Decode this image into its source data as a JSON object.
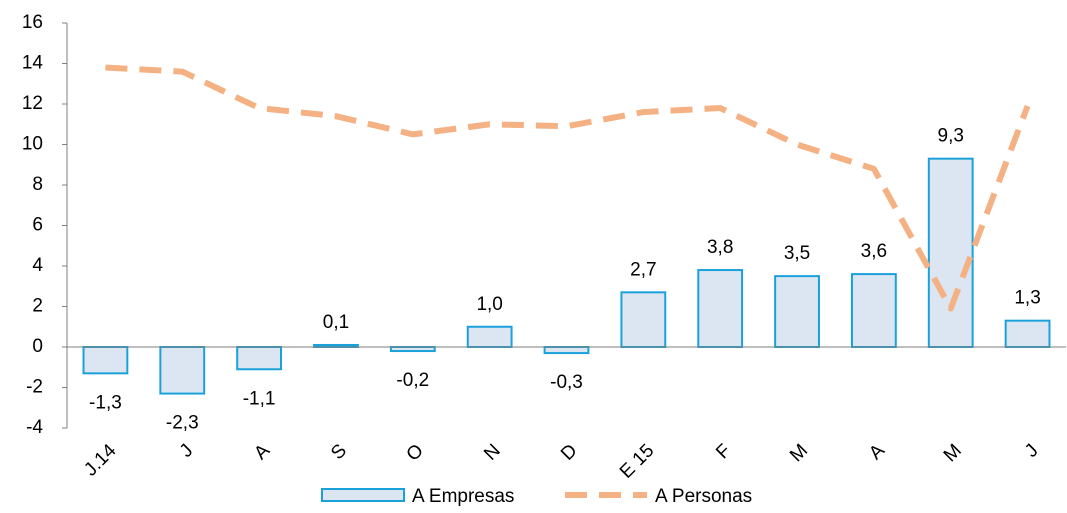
{
  "chart_data": {
    "type": "bar",
    "categories": [
      "J.14",
      "J",
      "A",
      "S",
      "O",
      "N",
      "D",
      "E 15",
      "F",
      "M",
      "A",
      "M",
      "J"
    ],
    "series": [
      {
        "name": "A Empresas",
        "type": "bar",
        "color": "#1ba1d9",
        "fill": "#dce6f2",
        "values": [
          -1.3,
          -2.3,
          -1.1,
          0.1,
          -0.2,
          1.0,
          -0.3,
          2.7,
          3.8,
          3.5,
          3.6,
          9.3,
          1.3
        ],
        "value_labels": [
          "-1,3",
          "-2,3",
          "-1,1",
          "0,1",
          "-0,2",
          "1,0",
          "-0,3",
          "2,7",
          "3,8",
          "3,5",
          "3,6",
          "9,3",
          "1,3"
        ]
      },
      {
        "name": "A Personas",
        "type": "line",
        "color": "#f4b183",
        "values": [
          13.8,
          13.6,
          11.8,
          11.4,
          10.5,
          11.0,
          10.9,
          11.6,
          11.8,
          10.0,
          8.8,
          1.9,
          11.9
        ]
      }
    ],
    "ylim": [
      -4,
      16
    ],
    "yticks": [
      -4,
      -2,
      0,
      2,
      4,
      6,
      8,
      10,
      12,
      14,
      16
    ],
    "grid": false,
    "legend": "bottom"
  }
}
